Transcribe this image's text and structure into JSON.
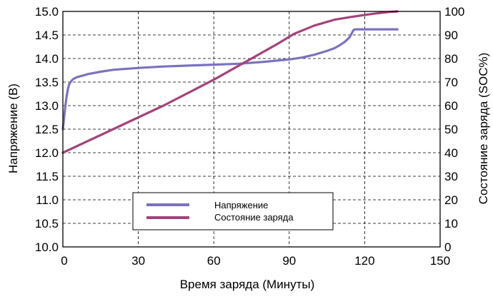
{
  "chart_data": {
    "type": "line",
    "xlabel": "Время заряда (Минуты)",
    "ylabel_left": "Напряжение (В)",
    "ylabel_right": "Состояние заряда (SOC%)",
    "xlim": [
      0,
      150
    ],
    "ylim_left": [
      10.0,
      15.0
    ],
    "ylim_right": [
      0,
      100
    ],
    "x_ticks": [
      0,
      30,
      60,
      90,
      120,
      150
    ],
    "y_left_ticks": [
      "10.0",
      "10.5",
      "11.0",
      "11.5",
      "12.0",
      "12.5",
      "13.0",
      "13.5",
      "14.0",
      "14.5",
      "15.0"
    ],
    "y_right_ticks": [
      0,
      10,
      20,
      30,
      40,
      50,
      60,
      70,
      80,
      90,
      100
    ],
    "grid": "dashed",
    "legend_position": "bottom-center",
    "series": [
      {
        "name": "Напряжение",
        "axis": "left",
        "color": "#7b72bf",
        "x": [
          0,
          0.5,
          1,
          1.5,
          2,
          2.5,
          3,
          4,
          5,
          6,
          8,
          10,
          15,
          20,
          30,
          40,
          50,
          60,
          70,
          80,
          90,
          95,
          100,
          105,
          108,
          110,
          112,
          114,
          115,
          115.5,
          116,
          120,
          125,
          133
        ],
        "y": [
          12.5,
          12.75,
          13.0,
          13.2,
          13.35,
          13.45,
          13.5,
          13.56,
          13.59,
          13.61,
          13.64,
          13.67,
          13.72,
          13.76,
          13.8,
          13.83,
          13.85,
          13.87,
          13.89,
          13.93,
          13.98,
          14.02,
          14.08,
          14.16,
          14.22,
          14.28,
          14.35,
          14.45,
          14.55,
          14.6,
          14.62,
          14.62,
          14.62,
          14.62
        ]
      },
      {
        "name": "Состояние заряда",
        "axis": "right",
        "color": "#a3437a",
        "x": [
          0,
          20,
          40,
          60,
          75,
          85,
          92,
          100,
          108,
          115,
          120,
          125,
          130,
          133
        ],
        "y": [
          40,
          50,
          60,
          71,
          80,
          86,
          90.5,
          94,
          96.5,
          97.7,
          98.5,
          99.2,
          99.8,
          100
        ]
      }
    ]
  },
  "colors": {
    "voltage": "#7b72bf",
    "soc": "#a3437a",
    "grid": "#000000"
  }
}
